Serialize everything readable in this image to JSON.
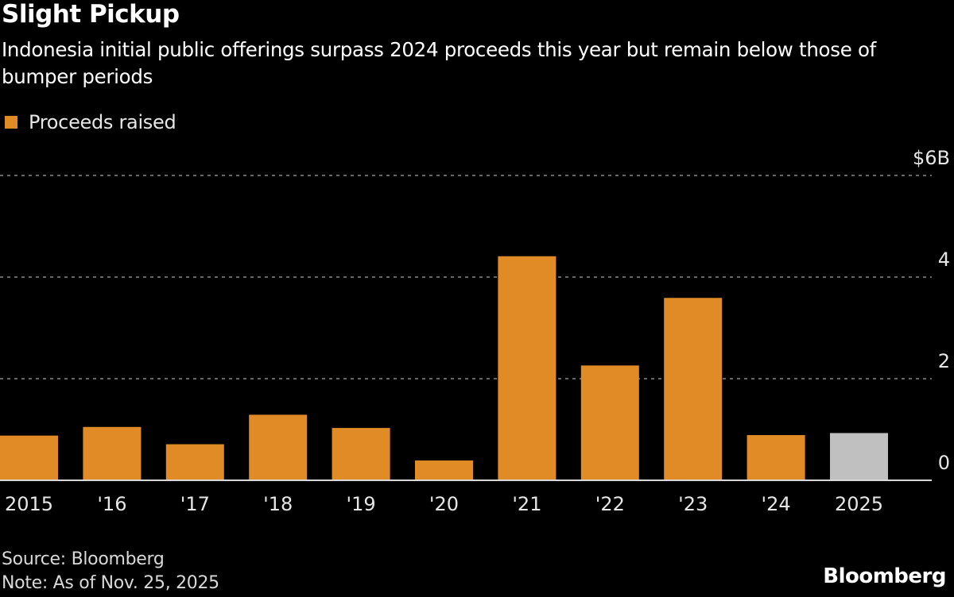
{
  "header": {
    "title": "Slight Pickup",
    "subtitle": "Indonesia initial public offerings surpass 2024 proceeds this year but remain below those of bumper periods"
  },
  "footer": {
    "source": "Source: Bloomberg",
    "note": "Note: As of Nov. 25, 2025",
    "logo": "Bloomberg"
  },
  "colors": {
    "background": "#000000",
    "bar": "#e08b26",
    "highlight_bar": "#c0c0c0",
    "gridline": "#8a8a8a",
    "axis": "#d9d9d9"
  },
  "chart_data": {
    "type": "bar",
    "title": "Slight Pickup",
    "subtitle": "Indonesia initial public offerings surpass 2024 proceeds this year but remain below those of bumper periods",
    "xlabel": "",
    "ylabel": "",
    "categories": [
      "2015",
      "'16",
      "'17",
      "'18",
      "'19",
      "'20",
      "'21",
      "'22",
      "'23",
      "'24",
      "2025"
    ],
    "series": [
      {
        "name": "Proceeds raised",
        "unit": "USD billions",
        "values": [
          0.88,
          1.05,
          0.71,
          1.29,
          1.03,
          0.39,
          4.41,
          2.26,
          3.59,
          0.89,
          0.93
        ],
        "highlight_index": 10
      }
    ],
    "ylim": [
      0,
      6
    ],
    "yticks": [
      0,
      2,
      4,
      6
    ],
    "ytick_labels": [
      "0",
      "2",
      "4",
      "$6B"
    ],
    "y_axis_position": "right",
    "grid": true,
    "legend": {
      "position": "top-left",
      "entries": [
        "Proceeds raised"
      ]
    }
  }
}
